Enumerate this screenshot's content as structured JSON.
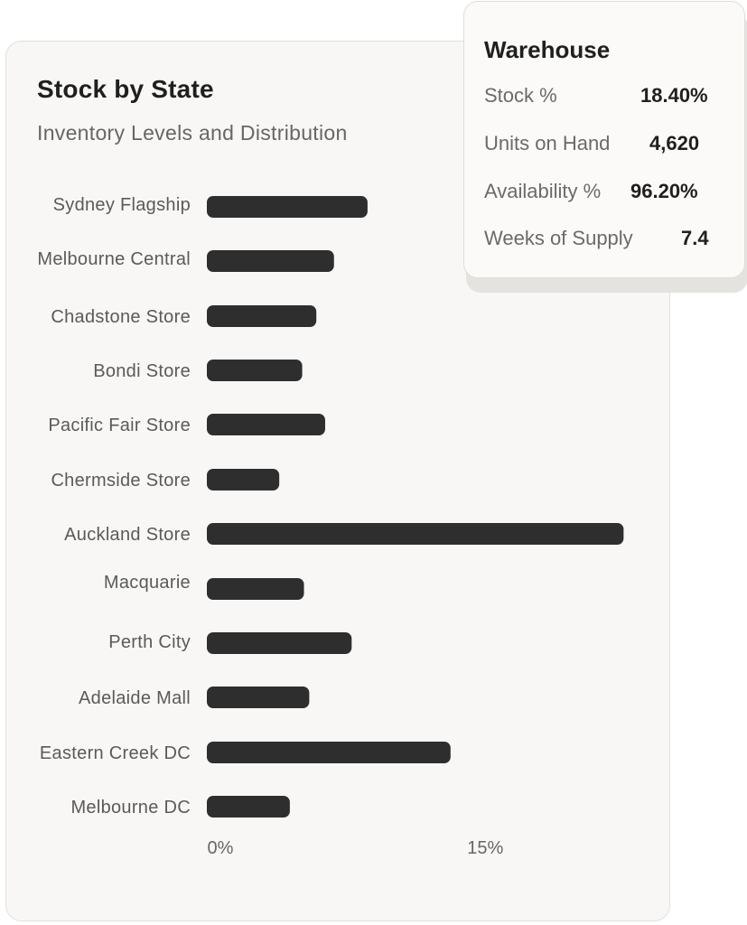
{
  "card": {
    "title": "Stock by State",
    "subtitle": "Inventory Levels and Distribution"
  },
  "chart_data": {
    "type": "bar",
    "orientation": "horizontal",
    "title": "Stock by State",
    "subtitle": "Inventory Levels and Distribution",
    "categories": [
      "Sydney Flagship",
      "Melbourne Central",
      "Chadstone Store",
      "Bondi Store",
      "Pacific Fair Store",
      "Chermside Store",
      "Auckland Store",
      "Macquarie",
      "Perth City",
      "Adelaide  Mall",
      "Eastern Creek DC",
      "Melbourne DC"
    ],
    "values": [
      9.1,
      7.2,
      6.2,
      5.4,
      6.7,
      4.1,
      23.6,
      5.5,
      8.2,
      5.8,
      13.8,
      4.7
    ],
    "x_ticks": [
      "0%",
      "15%"
    ],
    "xlim": [
      0,
      24.5
    ],
    "unit": "%",
    "bar_color": "#2e2e2e",
    "grid": false
  },
  "tooltip": {
    "title": "Warehouse",
    "rows": [
      {
        "label": "Stock %",
        "value": "18.40%"
      },
      {
        "label": "Units on Hand",
        "value": "4,620"
      },
      {
        "label": "Availability %",
        "value": "96.20%"
      },
      {
        "label": "Weeks of Supply",
        "value": "7.4"
      }
    ]
  }
}
